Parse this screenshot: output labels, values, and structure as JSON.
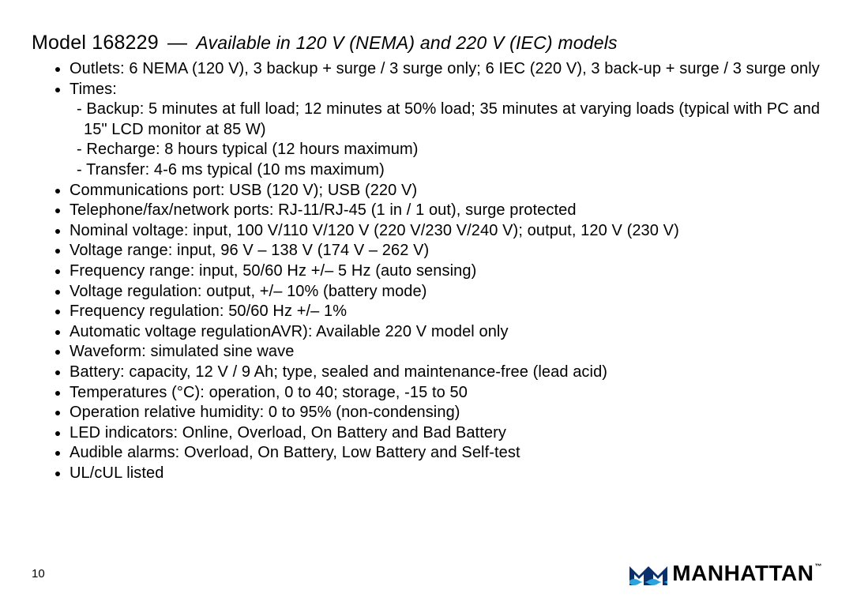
{
  "header": {
    "model_label": "Model 168229",
    "dash": "—",
    "subtitle": "Available in 120 V (NEMA) and 220 V (IEC) models"
  },
  "specs": [
    {
      "text": "Outlets: 6 NEMA (120 V), 3 backup + surge / 3 surge only; 6 IEC (220 V), 3 back-up + surge / 3 surge only"
    },
    {
      "text": "Times:",
      "subitems": [
        "Backup: 5 minutes at full load; 12 minutes at 50% load; 35 minutes at varying loads (typical with PC and 15\" LCD monitor at 85 W)",
        "Recharge: 8 hours typical (12 hours maximum)",
        "Transfer: 4-6 ms typical (10 ms maximum)"
      ]
    },
    {
      "text": "Communications port: USB (120 V); USB (220 V)"
    },
    {
      "text": "Telephone/fax/network ports: RJ-11/RJ-45 (1 in / 1 out), surge protected"
    },
    {
      "text": "Nominal voltage: input, 100 V/110 V/120 V (220 V/230 V/240 V); output, 120 V (230 V)"
    },
    {
      "text": "Voltage range: input, 96 V – 138 V (174 V – 262 V)"
    },
    {
      "text": "Frequency range: input, 50/60 Hz +/– 5 Hz (auto sensing)"
    },
    {
      "text": "Voltage regulation: output, +/– 10% (battery mode)"
    },
    {
      "text": "Frequency regulation: 50/60 Hz +/– 1%"
    },
    {
      "text": "Automatic voltage regulationAVR): Available 220 V model only"
    },
    {
      "text": "Waveform: simulated sine wave"
    },
    {
      "text": "Battery: capacity, 12 V / 9 Ah; type, sealed and maintenance-free (lead acid)"
    },
    {
      "text": "Temperatures (°C): operation, 0 to 40; storage, -15 to 50"
    },
    {
      "text": "Operation relative humidity: 0 to 95% (non-condensing)"
    },
    {
      "text": "LED indicators: Online, Overload, On Battery and Bad Battery"
    },
    {
      "text": "Audible alarms: Overload, On Battery, Low Battery and Self-test"
    },
    {
      "text": "UL/cUL listed"
    }
  ],
  "footer": {
    "page_number": "10",
    "brand_word": "MANHATTAN",
    "brand_tm": "™",
    "brand_colors": {
      "mark_primary": "#0a2f6b",
      "mark_accent": "#2aa3df",
      "text": "#000000"
    }
  }
}
